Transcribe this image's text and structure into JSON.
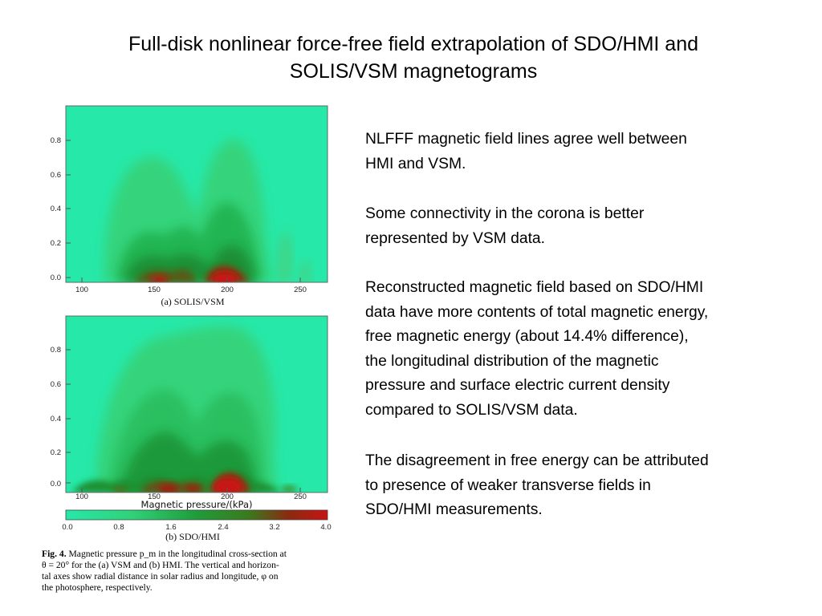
{
  "slide": {
    "title_line1": "Full-disk nonlinear force-free field extrapolation of SDO/HMI and",
    "title_line2": "SOLIS/VSM magnetograms",
    "paragraphs": [
      [
        "NLFFF magnetic field lines  agree well between",
        "HMI and VSM."
      ],
      [
        "Some connectivity  in the corona is better",
        "represented by VSM data."
      ],
      [
        "Reconstructed magnetic field based on SDO/HMI",
        "data have more contents of total magnetic energy,",
        "free magnetic energy (about 14.4% difference),",
        "the longitudinal distribution of the magnetic",
        "pressure and surface electric current density",
        "compared to SOLIS/VSM data."
      ],
      [
        "The disagreement in free energy can be attributed",
        "to presence of weaker transverse fields in",
        "SDO/HMI measurements."
      ]
    ]
  },
  "figure": {
    "y_ticks": [
      "0.0",
      "0.2",
      "0.4",
      "0.6",
      "0.8"
    ],
    "x_ticks": [
      "100",
      "150",
      "200",
      "250"
    ],
    "panel_a_label": "(a) SOLIS/VSM",
    "panel_b_label": "(b) SDO/HMI",
    "colorbar_title": "Magnetic pressure/(kPa)",
    "colorbar_ticks": [
      "0.0",
      "0.8",
      "1.6",
      "2.4",
      "3.2",
      "4.0"
    ],
    "colors": {
      "background": "#26e8a8",
      "low": "#2fd27a",
      "mid": "#1f9c3a",
      "high": "#c81414"
    },
    "caption_fig": "Fig. 4.",
    "caption_lines": [
      "Magnetic pressure p_m in the longitudinal cross-section at",
      "θ = 20° for the (a) VSM and (b) HMI. The vertical and horizon-",
      "tal axes show radial distance in solar radius and longitude, φ on",
      "the photosphere, respectively."
    ]
  }
}
